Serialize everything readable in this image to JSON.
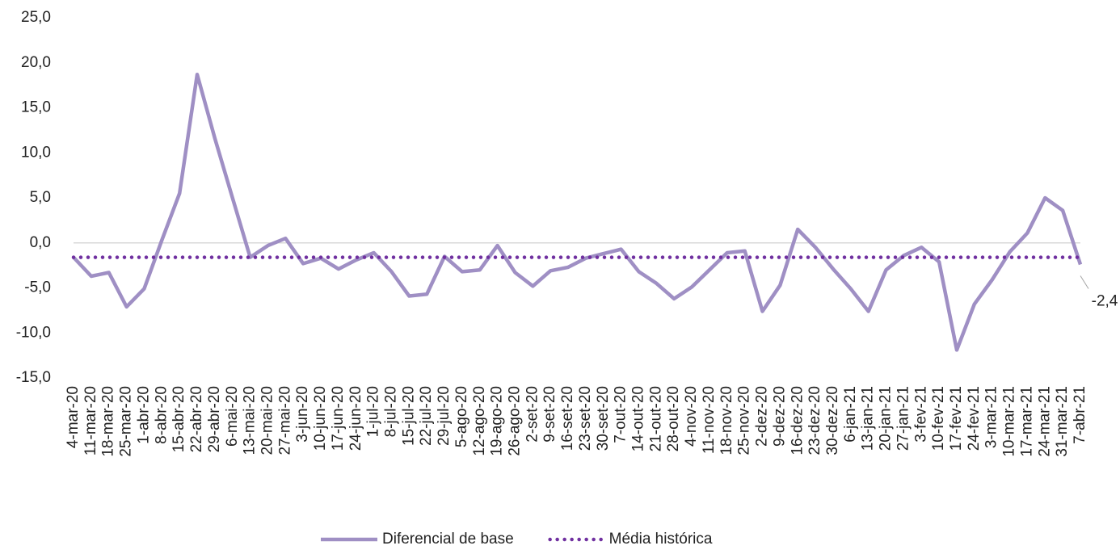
{
  "chart_data": {
    "type": "line",
    "categories": [
      "4-mar-20",
      "11-mar-20",
      "18-mar-20",
      "25-mar-20",
      "1-abr-20",
      "8-abr-20",
      "15-abr-20",
      "22-abr-20",
      "29-abr-20",
      "6-mai-20",
      "13-mai-20",
      "20-mai-20",
      "27-mai-20",
      "3-jun-20",
      "10-jun-20",
      "17-jun-20",
      "24-jun-20",
      "1-jul-20",
      "8-jul-20",
      "15-jul-20",
      "22-jul-20",
      "29-jul-20",
      "5-ago-20",
      "12-ago-20",
      "19-ago-20",
      "26-ago-20",
      "2-set-20",
      "9-set-20",
      "16-set-20",
      "23-set-20",
      "30-set-20",
      "7-out-20",
      "14-out-20",
      "21-out-20",
      "28-out-20",
      "4-nov-20",
      "11-nov-20",
      "18-nov-20",
      "25-nov-20",
      "2-dez-20",
      "9-dez-20",
      "16-dez-20",
      "23-dez-20",
      "30-dez-20",
      "6-jan-21",
      "13-jan-21",
      "20-jan-21",
      "27-jan-21",
      "3-fev-21",
      "10-fev-21",
      "17-fev-21",
      "24-fev-21",
      "3-mar-21",
      "10-mar-21",
      "17-mar-21",
      "24-mar-21",
      "31-mar-21",
      "7-abr-21"
    ],
    "series": [
      {
        "name": "Diferencial de base",
        "color": "#9f8fc4",
        "style": "solid",
        "values": [
          -1.6,
          -3.7,
          -3.3,
          -7.1,
          -5.1,
          0.3,
          5.5,
          18.7,
          11.6,
          5.0,
          -1.6,
          -0.3,
          0.5,
          -2.3,
          -1.7,
          -2.9,
          -1.9,
          -1.1,
          -3.2,
          -5.9,
          -5.7,
          -1.5,
          -3.2,
          -3.0,
          -0.3,
          -3.3,
          -4.8,
          -3.1,
          -2.7,
          -1.7,
          -1.2,
          -0.7,
          -3.2,
          -4.5,
          -6.2,
          -4.9,
          -3.0,
          -1.1,
          -0.9,
          -7.6,
          -4.7,
          1.5,
          -0.5,
          -2.9,
          -5.1,
          -7.6,
          -3.0,
          -1.4,
          -0.5,
          -2.1,
          -11.9,
          -6.8,
          -4.1,
          -1.0,
          1.1,
          5.0,
          3.6,
          -2.4
        ],
        "value_labels": [
          null,
          null,
          null,
          null,
          null,
          null,
          null,
          null,
          null,
          null,
          null,
          null,
          null,
          null,
          null,
          null,
          null,
          null,
          null,
          null,
          null,
          null,
          null,
          null,
          null,
          null,
          null,
          null,
          null,
          null,
          null,
          null,
          null,
          null,
          null,
          null,
          null,
          null,
          null,
          null,
          null,
          null,
          null,
          null,
          null,
          null,
          null,
          null,
          null,
          null,
          null,
          null,
          null,
          null,
          null,
          null,
          null,
          "-2,4"
        ]
      },
      {
        "name": "Média histórica",
        "color": "#7030a0",
        "style": "dotted",
        "values": [
          -1.6,
          -1.6,
          -1.6,
          -1.6,
          -1.6,
          -1.6,
          -1.6,
          -1.6,
          -1.6,
          -1.6,
          -1.6,
          -1.6,
          -1.6,
          -1.6,
          -1.6,
          -1.6,
          -1.6,
          -1.6,
          -1.6,
          -1.6,
          -1.6,
          -1.6,
          -1.6,
          -1.6,
          -1.6,
          -1.6,
          -1.6,
          -1.6,
          -1.6,
          -1.6,
          -1.6,
          -1.6,
          -1.6,
          -1.6,
          -1.6,
          -1.6,
          -1.6,
          -1.6,
          -1.6,
          -1.6,
          -1.6,
          -1.6,
          -1.6,
          -1.6,
          -1.6,
          -1.6,
          -1.6,
          -1.6,
          -1.6,
          -1.6,
          -1.6,
          -1.6,
          -1.6,
          -1.6,
          -1.6,
          -1.6,
          -1.6,
          -1.6
        ]
      }
    ],
    "ylim": [
      -15,
      25
    ],
    "yticks": [
      {
        "value": -15,
        "label": "-15,0"
      },
      {
        "value": -10,
        "label": "-10,0"
      },
      {
        "value": -5,
        "label": "-5,0"
      },
      {
        "value": 0,
        "label": "0,0"
      },
      {
        "value": 5,
        "label": "5,0"
      },
      {
        "value": 10,
        "label": "10,0"
      },
      {
        "value": 15,
        "label": "15,0"
      },
      {
        "value": 20,
        "label": "20,0"
      },
      {
        "value": 25,
        "label": "25,0"
      }
    ],
    "legend": "bottom"
  }
}
